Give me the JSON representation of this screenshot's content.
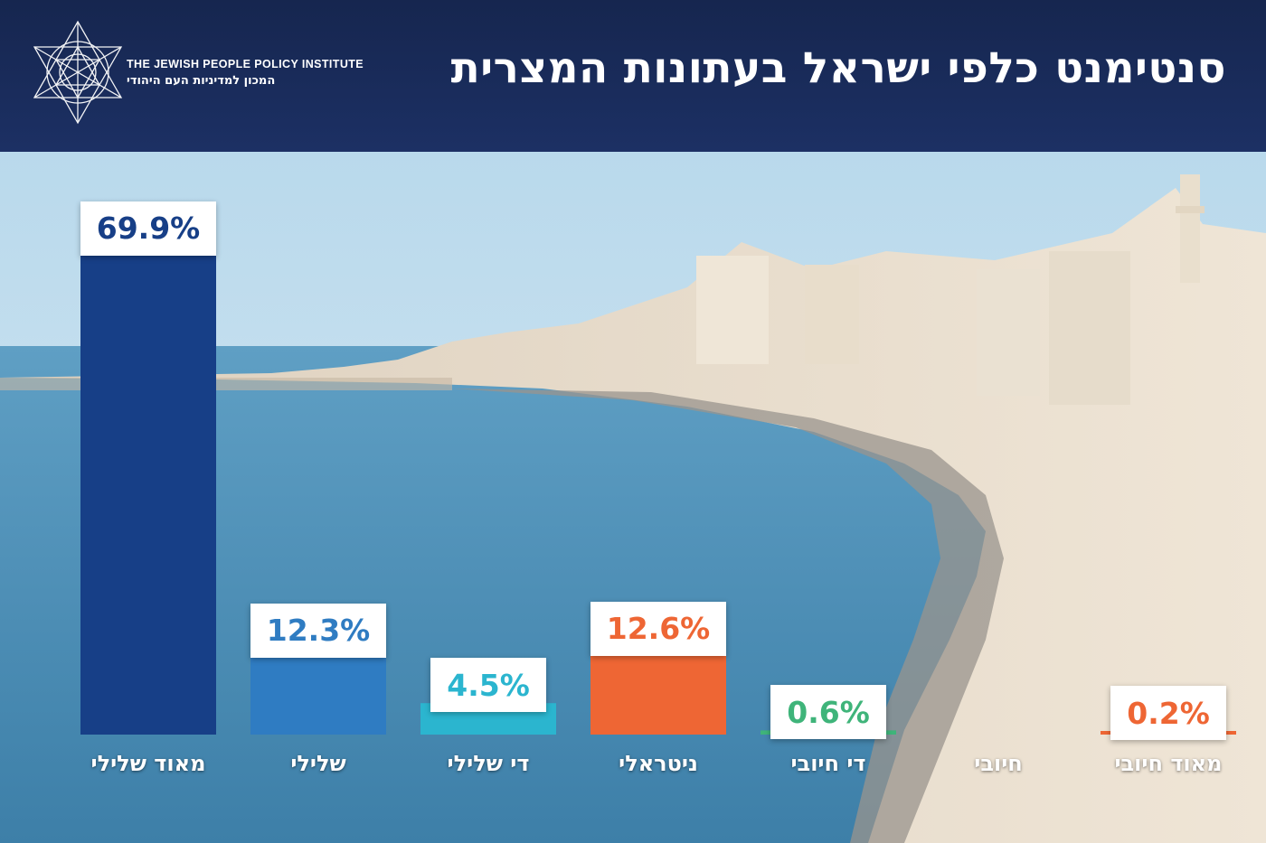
{
  "header": {
    "title": "סנטימנט כלפי ישראל בעתונות המצרית",
    "org_name_en": "THE JEWISH PEOPLE POLICY INSTITUTE",
    "org_name_he": "המכון למדיניות העם היהודי",
    "logo_icon": "star-of-david-geometric-logo"
  },
  "colors": {
    "header_bg": "#1a2c5c",
    "very_negative": "#173f87",
    "negative": "#2f7cc2",
    "somewhat_negative": "#2bb5cf",
    "neutral": "#ee6634",
    "somewhat_positive": "#3fb47a",
    "positive": "#3fb47a",
    "very_positive": "#ee6634"
  },
  "chart_data": {
    "type": "bar",
    "title": "סנטימנט כלפי ישראל בעתונות המצרית",
    "categories": [
      "מאוד שלילי",
      "שלילי",
      "די שלילי",
      "ניטראלי",
      "די חיובי",
      "חיובי",
      "מאוד חיובי"
    ],
    "values": [
      69.9,
      12.3,
      4.5,
      12.6,
      0.6,
      null,
      0.2
    ],
    "value_labels": [
      "69.9%",
      "12.3%",
      "4.5%",
      "12.6%",
      "0.6%",
      "",
      "0.2%"
    ],
    "bar_colors": [
      "#173f87",
      "#2f7cc2",
      "#2bb5cf",
      "#ee6634",
      "#3fb47a",
      "#3fb47a",
      "#ee6634"
    ],
    "label_colors": [
      "#173f87",
      "#2f7cc2",
      "#2bb5cf",
      "#ee6634",
      "#3fb47a",
      "#3fb47a",
      "#ee6634"
    ],
    "ylim": [
      0,
      70
    ],
    "grid": false,
    "legend": "none",
    "xlabel": "",
    "ylabel": ""
  }
}
